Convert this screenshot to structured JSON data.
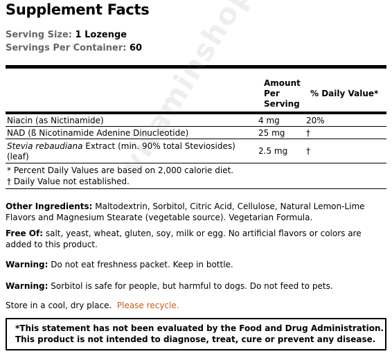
{
  "title": "Supplement Facts",
  "serving_size": {
    "label": "Serving Size:",
    "value": "1 Lozenge"
  },
  "servings_per_container": {
    "label": "Servings Per Container:",
    "value": "60"
  },
  "table": {
    "amount_header": [
      "Amount",
      "Per",
      "Serving"
    ],
    "dv_header": "% Daily Value*",
    "rows": [
      {
        "name": "Niacin (as Nictinamide)",
        "amount": "4 mg",
        "dv": "20%"
      },
      {
        "name": "NAD (ß Nicotinamide Adenine Dinucleotide)",
        "amount": "25 mg",
        "dv": "†"
      },
      {
        "name_italic": "Stevia rebaudiana",
        "name_rest": " Extract  (min. 90% total Steviosides)",
        "name_line2": "(leaf)",
        "amount": "2.5 mg",
        "dv": "†"
      }
    ],
    "footnote1": "* Percent Daily Values are based on 2,000 calorie diet.",
    "footnote2": "† Daily Value not established."
  },
  "other_ingredients": {
    "label": "Other Ingredients:",
    "line1": " Maltodextrin, Sorbitol, Citric Acid, Cellulose, Natural Lemon-Lime",
    "line2": "Flavors and Magnesium Stearate (vegetable source). Vegetarian Formula."
  },
  "free_of": {
    "label": "Free Of:",
    "line1": " salt, yeast, wheat, gluten, soy, milk or egg.  No artificial flavors or colors are",
    "line2": "added to this product."
  },
  "warning1": {
    "label": "Warning:",
    "text": " Do not eat freshness packet. Keep in bottle."
  },
  "warning2": {
    "label": "Warning:",
    "text": "  Sorbitol is safe for people, but harmful to dogs.  Do not feed to pets."
  },
  "storage": {
    "text": "Store in a cool, dry place.  ",
    "recycle": "Please recycle."
  },
  "fda": {
    "line1": "*This statement has not been evaluated by the Food and Drug Administration.",
    "line2": "This product is not intended to diagnose, treat, cure or prevent any disease."
  },
  "watermark": "vitaminshoppe.com",
  "colors": {
    "recycle": "#c85b1a",
    "label_gray": "#666666"
  }
}
